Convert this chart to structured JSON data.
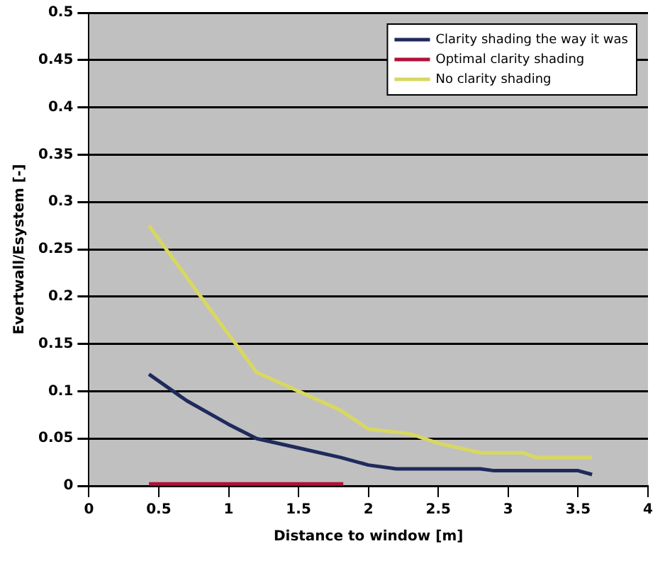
{
  "chart_data": {
    "type": "line",
    "xlabel": "Distance to window [m]",
    "ylabel": "Evertwall/Esystem [-]",
    "xlim": [
      0,
      4
    ],
    "xticks": [
      0,
      0.5,
      1,
      1.5,
      2,
      2.5,
      3,
      3.5,
      4
    ],
    "ylim": [
      0,
      0.5
    ],
    "yticks": [
      0,
      0.05,
      0.1,
      0.15,
      0.2,
      0.25,
      0.3,
      0.35,
      0.4,
      0.45,
      0.5
    ],
    "grid": "y",
    "legend": "top right",
    "marker": "none",
    "line_style": "solid",
    "series": [
      {
        "name": "Clarity shading the way it was",
        "color": "#1f2a5c",
        "x": [
          0.43,
          0.7,
          1.0,
          1.2,
          1.5,
          1.8,
          2.0,
          2.2,
          2.8,
          2.9,
          3.5,
          3.6
        ],
        "values": [
          0.118,
          0.09,
          0.065,
          0.05,
          0.04,
          0.03,
          0.022,
          0.018,
          0.018,
          0.016,
          0.016,
          0.012
        ]
      },
      {
        "name": "Optimal clarity shading",
        "color": "#b0103a",
        "x": [
          0.43,
          1.82
        ],
        "values": [
          0.002,
          0.002
        ]
      },
      {
        "name": "No clarity shading",
        "color": "#d8d860",
        "x": [
          0.43,
          0.8,
          1.05,
          1.2,
          1.5,
          1.8,
          2.0,
          2.3,
          2.5,
          2.8,
          3.1,
          3.2,
          3.6
        ],
        "values": [
          0.275,
          0.2,
          0.15,
          0.12,
          0.1,
          0.08,
          0.06,
          0.055,
          0.045,
          0.035,
          0.035,
          0.03,
          0.03
        ]
      }
    ]
  }
}
